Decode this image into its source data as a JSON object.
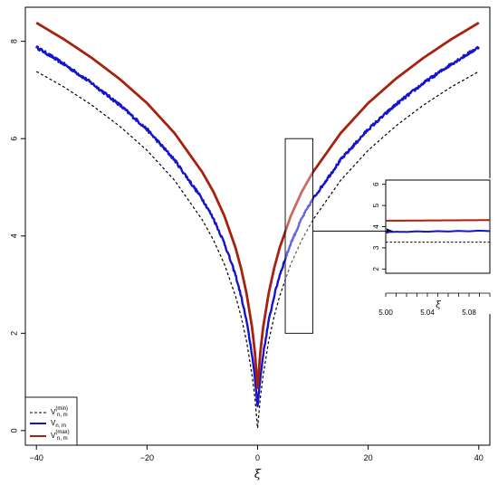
{
  "chart_data": {
    "main": {
      "type": "line",
      "xlabel": "ξ",
      "ylabel": "",
      "xlim": [
        -42,
        42
      ],
      "ylim": [
        -0.3,
        8.7
      ],
      "xticks": [
        -40,
        -20,
        0,
        20,
        40
      ],
      "yticks": [
        0,
        2,
        4,
        6,
        8
      ],
      "grid": false,
      "legend_position": "bottom-left",
      "series": [
        {
          "name": "V_min",
          "label_main": "V",
          "label_sub": "n, m",
          "label_sup": "(min)",
          "color": "#000000",
          "style": "dashed",
          "noise": 0,
          "x": [
            -40,
            -35,
            -30,
            -25,
            -20,
            -15,
            -10,
            -8,
            -6,
            -4,
            -3,
            -2,
            -1,
            -0.5,
            0,
            0.5,
            1,
            2,
            3,
            4,
            6,
            8,
            10,
            15,
            20,
            25,
            30,
            35,
            40
          ],
          "y": [
            7.38,
            7.06,
            6.69,
            6.26,
            5.76,
            5.14,
            4.33,
            3.92,
            3.42,
            2.77,
            2.35,
            1.84,
            1.13,
            0.69,
            0.05,
            0.69,
            1.13,
            1.84,
            2.35,
            2.77,
            3.42,
            3.92,
            4.33,
            5.14,
            5.76,
            6.26,
            6.69,
            7.06,
            7.38
          ]
        },
        {
          "name": "V_nm",
          "label_main": "V",
          "label_sub": "n, m",
          "label_sup": "",
          "color": "#1414cc",
          "style": "solid",
          "noise": 0.06,
          "x": [
            -40,
            -35,
            -30,
            -25,
            -20,
            -15,
            -10,
            -8,
            -6,
            -4,
            -3,
            -2,
            -1,
            -0.5,
            0,
            0.5,
            1,
            2,
            3,
            4,
            6,
            8,
            10,
            15,
            20,
            25,
            30,
            35,
            40
          ],
          "y": [
            7.88,
            7.53,
            7.14,
            6.7,
            6.19,
            5.56,
            4.76,
            4.36,
            3.85,
            3.2,
            2.77,
            2.25,
            1.56,
            1.08,
            0.52,
            1.08,
            1.56,
            2.25,
            2.77,
            3.2,
            3.85,
            4.36,
            4.76,
            5.56,
            6.19,
            6.7,
            7.14,
            7.53,
            7.88
          ]
        },
        {
          "name": "V_max",
          "label_main": "V",
          "label_sub": "n, m",
          "label_sup": "(max)",
          "color": "#a8200e",
          "style": "solid",
          "noise": 0,
          "x": [
            -40,
            -35,
            -30,
            -25,
            -20,
            -15,
            -10,
            -8,
            -6,
            -4,
            -3,
            -2,
            -1,
            -0.5,
            0,
            0.5,
            1,
            2,
            3,
            4,
            6,
            8,
            10,
            15,
            20,
            25,
            30,
            35,
            40
          ],
          "y": [
            8.38,
            8.04,
            7.66,
            7.23,
            6.73,
            6.11,
            5.31,
            4.91,
            4.41,
            3.76,
            3.34,
            2.82,
            2.12,
            1.62,
            0.88,
            1.62,
            2.12,
            2.82,
            3.34,
            3.76,
            4.41,
            4.91,
            5.31,
            6.11,
            6.73,
            7.23,
            7.66,
            8.04,
            8.38
          ]
        }
      ],
      "highlight_box": {
        "x_range": [
          5,
          10
        ],
        "y_range": [
          2,
          6
        ]
      }
    },
    "inset": {
      "type": "line",
      "xlabel": "ξ",
      "xlim": [
        5.0,
        5.1
      ],
      "ylim": [
        1.8,
        6.2
      ],
      "xticks": [
        5.0,
        5.04,
        5.08
      ],
      "xtick_labels": [
        "5.00",
        "5.04",
        "5.08"
      ],
      "yticks": [
        2,
        3,
        4,
        5,
        6
      ],
      "series": [
        {
          "name": "V_min",
          "color": "#000000",
          "style": "dashed",
          "x": [
            5.0,
            5.1
          ],
          "y": [
            3.27,
            3.27
          ]
        },
        {
          "name": "V_nm",
          "color": "#1414cc",
          "style": "solid",
          "x": [
            5.0,
            5.01,
            5.02,
            5.03,
            5.04,
            5.05,
            5.06,
            5.07,
            5.08,
            5.09,
            5.1
          ],
          "y": [
            3.74,
            3.76,
            3.75,
            3.78,
            3.76,
            3.79,
            3.77,
            3.8,
            3.78,
            3.81,
            3.79
          ]
        },
        {
          "name": "V_max",
          "color": "#a8200e",
          "style": "solid",
          "x": [
            5.0,
            5.1
          ],
          "y": [
            4.28,
            4.31
          ]
        }
      ]
    }
  }
}
